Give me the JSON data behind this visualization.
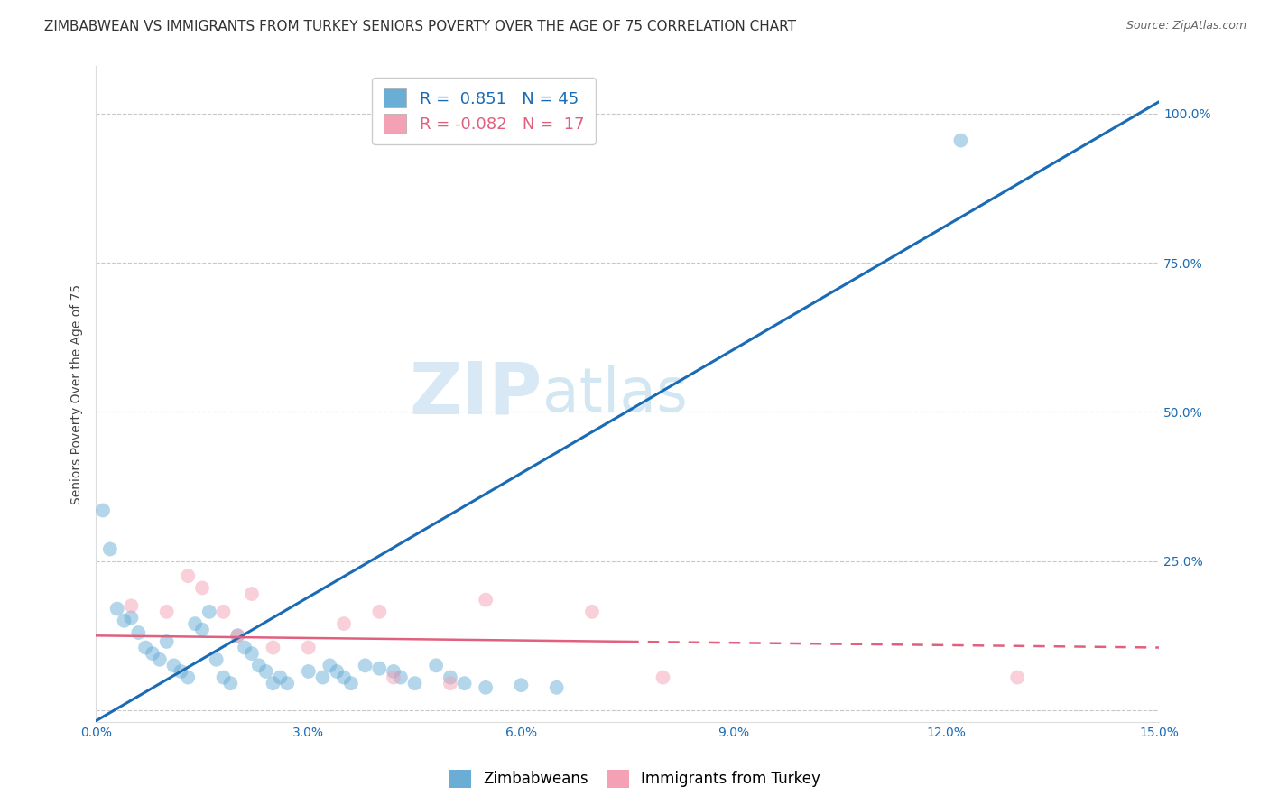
{
  "title": "ZIMBABWEAN VS IMMIGRANTS FROM TURKEY SENIORS POVERTY OVER THE AGE OF 75 CORRELATION CHART",
  "source": "Source: ZipAtlas.com",
  "ylabel_label": "Seniors Poverty Over the Age of 75",
  "xlim": [
    0.0,
    0.15
  ],
  "ylim": [
    -0.02,
    1.08
  ],
  "xticks": [
    0.0,
    0.03,
    0.06,
    0.09,
    0.12,
    0.15
  ],
  "xtick_labels": [
    "0.0%",
    "3.0%",
    "6.0%",
    "9.0%",
    "12.0%",
    "15.0%"
  ],
  "yticks": [
    0.0,
    0.25,
    0.5,
    0.75,
    1.0
  ],
  "ytick_labels": [
    "",
    "25.0%",
    "50.0%",
    "75.0%",
    "100.0%"
  ],
  "blue_R": 0.851,
  "blue_N": 45,
  "pink_R": -0.082,
  "pink_N": 17,
  "blue_label": "Zimbabweans",
  "pink_label": "Immigrants from Turkey",
  "blue_color": "#6aaed6",
  "pink_color": "#f4a0b5",
  "blue_line_color": "#1a6bb5",
  "pink_line_color": "#e0607e",
  "watermark_zip": "ZIP",
  "watermark_atlas": "atlas",
  "blue_line": [
    [
      0.0,
      -0.018
    ],
    [
      0.15,
      1.02
    ]
  ],
  "pink_line_solid": [
    [
      0.0,
      0.125
    ],
    [
      0.075,
      0.115
    ]
  ],
  "pink_line_dashed": [
    [
      0.075,
      0.115
    ],
    [
      0.15,
      0.105
    ]
  ],
  "blue_dots": [
    [
      0.001,
      0.335
    ],
    [
      0.002,
      0.27
    ],
    [
      0.003,
      0.17
    ],
    [
      0.004,
      0.15
    ],
    [
      0.005,
      0.155
    ],
    [
      0.006,
      0.13
    ],
    [
      0.007,
      0.105
    ],
    [
      0.008,
      0.095
    ],
    [
      0.009,
      0.085
    ],
    [
      0.01,
      0.115
    ],
    [
      0.011,
      0.075
    ],
    [
      0.012,
      0.065
    ],
    [
      0.013,
      0.055
    ],
    [
      0.014,
      0.145
    ],
    [
      0.015,
      0.135
    ],
    [
      0.016,
      0.165
    ],
    [
      0.017,
      0.085
    ],
    [
      0.018,
      0.055
    ],
    [
      0.019,
      0.045
    ],
    [
      0.02,
      0.125
    ],
    [
      0.021,
      0.105
    ],
    [
      0.022,
      0.095
    ],
    [
      0.023,
      0.075
    ],
    [
      0.024,
      0.065
    ],
    [
      0.025,
      0.045
    ],
    [
      0.026,
      0.055
    ],
    [
      0.027,
      0.045
    ],
    [
      0.03,
      0.065
    ],
    [
      0.032,
      0.055
    ],
    [
      0.033,
      0.075
    ],
    [
      0.034,
      0.065
    ],
    [
      0.035,
      0.055
    ],
    [
      0.036,
      0.045
    ],
    [
      0.038,
      0.075
    ],
    [
      0.04,
      0.07
    ],
    [
      0.042,
      0.065
    ],
    [
      0.043,
      0.055
    ],
    [
      0.045,
      0.045
    ],
    [
      0.048,
      0.075
    ],
    [
      0.05,
      0.055
    ],
    [
      0.052,
      0.045
    ],
    [
      0.055,
      0.038
    ],
    [
      0.06,
      0.042
    ],
    [
      0.065,
      0.038
    ],
    [
      0.122,
      0.955
    ]
  ],
  "pink_dots": [
    [
      0.005,
      0.175
    ],
    [
      0.01,
      0.165
    ],
    [
      0.013,
      0.225
    ],
    [
      0.015,
      0.205
    ],
    [
      0.018,
      0.165
    ],
    [
      0.02,
      0.125
    ],
    [
      0.022,
      0.195
    ],
    [
      0.025,
      0.105
    ],
    [
      0.03,
      0.105
    ],
    [
      0.035,
      0.145
    ],
    [
      0.04,
      0.165
    ],
    [
      0.042,
      0.055
    ],
    [
      0.05,
      0.045
    ],
    [
      0.055,
      0.185
    ],
    [
      0.07,
      0.165
    ],
    [
      0.08,
      0.055
    ],
    [
      0.13,
      0.055
    ]
  ],
  "title_fontsize": 11,
  "axis_label_fontsize": 10,
  "tick_fontsize": 10,
  "legend_fontsize": 12,
  "dot_size": 130,
  "dot_alpha": 0.5,
  "background_color": "#ffffff",
  "grid_color": "#c8c8c8"
}
